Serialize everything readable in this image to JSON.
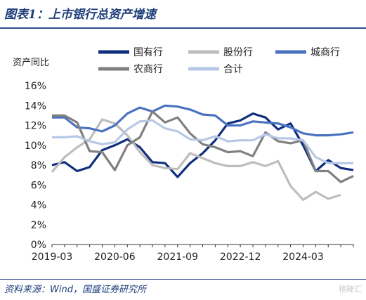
{
  "header": {
    "title": "图表1：上市银行总资产增速"
  },
  "footer": {
    "source": "资料来源：Wind，国盛证券研究所",
    "watermark": "格隆汇"
  },
  "chart_data": {
    "type": "line",
    "ylabel": "资产同比",
    "ylim": [
      0,
      16
    ],
    "yticks": [
      0,
      2,
      4,
      6,
      8,
      10,
      12,
      14,
      16
    ],
    "ytick_labels": [
      "0%",
      "2%",
      "4%",
      "6%",
      "8%",
      "10%",
      "12%",
      "14%",
      "16%"
    ],
    "x": [
      "2019-03",
      "2019-06",
      "2019-09",
      "2019-12",
      "2020-03",
      "2020-06",
      "2020-09",
      "2020-12",
      "2021-03",
      "2021-06",
      "2021-09",
      "2021-12",
      "2022-03",
      "2022-06",
      "2022-09",
      "2022-12",
      "2023-03",
      "2023-06",
      "2023-09",
      "2023-12",
      "2024-03",
      "2024-06",
      "2024-09",
      "2024-12",
      "2025-03"
    ],
    "xtick_labels": [
      "2019-03",
      "2020-06",
      "2021-09",
      "2022-12",
      "2024-03"
    ],
    "legend_placement": "top",
    "grid": false,
    "series": [
      {
        "name": "国有行",
        "color": "#0f2f7e",
        "values": [
          8.0,
          8.3,
          7.4,
          7.8,
          9.5,
          10.0,
          10.6,
          9.8,
          8.3,
          8.2,
          6.8,
          8.2,
          9.2,
          10.5,
          12.2,
          12.5,
          13.2,
          12.8,
          11.6,
          12.2,
          10.0,
          7.4,
          8.5,
          7.7,
          7.5
        ]
      },
      {
        "name": "股份行",
        "color": "#bdbdbd",
        "values": [
          7.3,
          8.8,
          9.8,
          10.6,
          12.6,
          12.2,
          11.0,
          9.3,
          8.0,
          7.7,
          7.6,
          9.2,
          8.7,
          8.2,
          7.9,
          7.9,
          8.3,
          7.9,
          8.4,
          5.9,
          4.5,
          5.3,
          4.6,
          5.0,
          null
        ]
      },
      {
        "name": "城商行",
        "color": "#4a72c0",
        "values": [
          12.8,
          12.8,
          11.8,
          11.7,
          11.4,
          12.0,
          13.2,
          13.8,
          13.4,
          14.0,
          13.9,
          13.6,
          13.1,
          13.0,
          12.0,
          12.0,
          12.4,
          12.3,
          12.2,
          11.8,
          11.2,
          11.0,
          11.0,
          11.1,
          11.3
        ]
      },
      {
        "name": "农商行",
        "color": "#808080",
        "values": [
          13.0,
          13.0,
          12.3,
          9.4,
          9.3,
          7.5,
          10.0,
          10.8,
          13.4,
          12.3,
          12.8,
          11.2,
          10.1,
          9.8,
          9.3,
          9.4,
          8.9,
          11.3,
          10.4,
          10.2,
          10.5,
          7.4,
          7.4,
          6.3,
          6.9
        ]
      },
      {
        "name": "合计",
        "color": "#b7c8e6",
        "values": [
          10.8,
          10.8,
          10.9,
          10.4,
          10.1,
          10.3,
          11.6,
          12.4,
          12.5,
          11.7,
          11.4,
          10.6,
          10.5,
          10.9,
          10.4,
          10.5,
          10.5,
          11.1,
          10.7,
          10.7,
          10.5,
          8.8,
          8.2,
          8.2,
          8.2
        ]
      }
    ]
  }
}
